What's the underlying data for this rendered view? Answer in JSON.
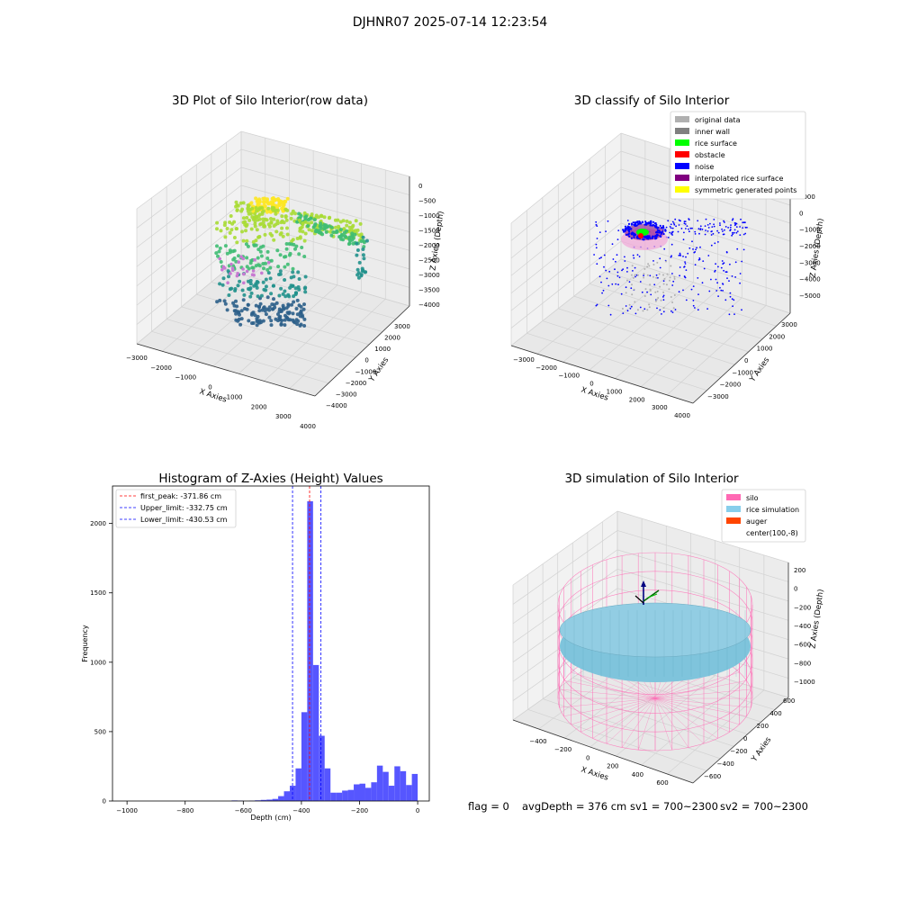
{
  "figure": {
    "suptitle": "DJHNR07 2025-07-14 12:23:54",
    "footer": {
      "flag": "flag = 0",
      "avg_depth": "avgDepth = 376 cm",
      "sv1": "sv1 = 700~2300",
      "sv2": "sv2 = 700~2300"
    }
  },
  "chart_data": [
    {
      "type": "scatter3d",
      "title": "3D Plot of Silo Interior(row data)",
      "xlabel": "X Axies",
      "ylabel": "Y Axies",
      "zlabel": "Z Axies (Depth)",
      "xticks": [
        "−3000",
        "−2000",
        "−1000",
        "0",
        "1000",
        "2000",
        "3000",
        "4000"
      ],
      "yticks": [
        "−4000",
        "−3000",
        "−2000",
        "−1000",
        "0",
        "1000",
        "2000",
        "3000"
      ],
      "zticks": [
        "0",
        "−500",
        "−1000",
        "−1500",
        "−2000",
        "−2500",
        "−3000",
        "−3500",
        "−4000"
      ],
      "colormap": [
        "#2c5f8a",
        "#21918c",
        "#3fbc73",
        "#a8db34",
        "#fde725"
      ]
    },
    {
      "type": "scatter3d",
      "title": "3D classify of Silo Interior",
      "xlabel": "X Axies",
      "ylabel": "Y Axies",
      "zlabel": "Z Axies (Depth)",
      "xticks": [
        "−3000",
        "−2000",
        "−1000",
        "0",
        "1000",
        "2000",
        "3000",
        "4000"
      ],
      "yticks": [
        "−3000",
        "−2000",
        "−1000",
        "0",
        "1000",
        "2000",
        "3000"
      ],
      "zticks": [
        "1000",
        "0",
        "−1000",
        "−2000",
        "−3000",
        "−4000",
        "−5000"
      ],
      "legend_position": "upper-right",
      "legend": [
        {
          "name": "original data",
          "color": "#b0b0b0"
        },
        {
          "name": "inner wall",
          "color": "#808080"
        },
        {
          "name": "rice surface",
          "color": "#00ff00"
        },
        {
          "name": "obstacle",
          "color": "#ff0000"
        },
        {
          "name": "noise",
          "color": "#0000ff"
        },
        {
          "name": "interpolated rice surface",
          "color": "#800080"
        },
        {
          "name": "symmetric generated points",
          "color": "#ffff00"
        }
      ]
    },
    {
      "type": "bar",
      "title": "Histogram of Z-Axies (Height) Values",
      "xlabel": "Depth (cm)",
      "ylabel": "Frequency",
      "xlim": [
        -1050,
        40
      ],
      "ylim": [
        0,
        2270
      ],
      "xticks": [
        -1000,
        -800,
        -600,
        -400,
        -200,
        0
      ],
      "yticks": [
        0,
        500,
        1000,
        1500,
        2000
      ],
      "bin_width": 20,
      "bar_color": "#4d4dff",
      "bins": [
        {
          "x": -630,
          "y": 4
        },
        {
          "x": -610,
          "y": 3
        },
        {
          "x": -570,
          "y": 2
        },
        {
          "x": -550,
          "y": 5
        },
        {
          "x": -530,
          "y": 8
        },
        {
          "x": -510,
          "y": 10
        },
        {
          "x": -490,
          "y": 15
        },
        {
          "x": -470,
          "y": 35
        },
        {
          "x": -450,
          "y": 70
        },
        {
          "x": -430,
          "y": 110
        },
        {
          "x": -410,
          "y": 235
        },
        {
          "x": -390,
          "y": 640
        },
        {
          "x": -370,
          "y": 2160
        },
        {
          "x": -350,
          "y": 980
        },
        {
          "x": -330,
          "y": 470
        },
        {
          "x": -310,
          "y": 235
        },
        {
          "x": -290,
          "y": 60
        },
        {
          "x": -270,
          "y": 60
        },
        {
          "x": -250,
          "y": 75
        },
        {
          "x": -230,
          "y": 80
        },
        {
          "x": -210,
          "y": 120
        },
        {
          "x": -190,
          "y": 125
        },
        {
          "x": -170,
          "y": 95
        },
        {
          "x": -150,
          "y": 135
        },
        {
          "x": -130,
          "y": 255
        },
        {
          "x": -110,
          "y": 210
        },
        {
          "x": -90,
          "y": 110
        },
        {
          "x": -70,
          "y": 250
        },
        {
          "x": -50,
          "y": 215
        },
        {
          "x": -30,
          "y": 115
        },
        {
          "x": -10,
          "y": 195
        }
      ],
      "vlines": [
        {
          "x": -371.86,
          "color": "#ff0000",
          "label": "first_peak: -371.86 cm"
        },
        {
          "x": -332.75,
          "color": "#0000ff",
          "label": "Upper_limit: -332.75 cm"
        },
        {
          "x": -430.53,
          "color": "#0000ff",
          "label": "Lower_limit: -430.53 cm"
        }
      ],
      "legend_position": "upper-left"
    },
    {
      "type": "surface3d",
      "title": "3D simulation of Silo Interior",
      "xlabel": "X Axies",
      "ylabel": "Y Axies",
      "zlabel": "Z Axies (Depth)",
      "xticks": [
        "−400",
        "−200",
        "0",
        "200",
        "400",
        "600"
      ],
      "yticks": [
        "−600",
        "−400",
        "−200",
        "0",
        "200",
        "400",
        "600"
      ],
      "zticks": [
        "200",
        "0",
        "−200",
        "−400",
        "−600",
        "−800",
        "−1000"
      ],
      "legend_position": "upper-right",
      "legend": [
        {
          "name": "silo",
          "color": "#ff69b4"
        },
        {
          "name": "rice simulation",
          "color": "#87ceeb"
        },
        {
          "name": "auger",
          "color": "#ff4500"
        },
        {
          "name": "center(100,-8)",
          "color": "#ffffff"
        }
      ]
    }
  ]
}
